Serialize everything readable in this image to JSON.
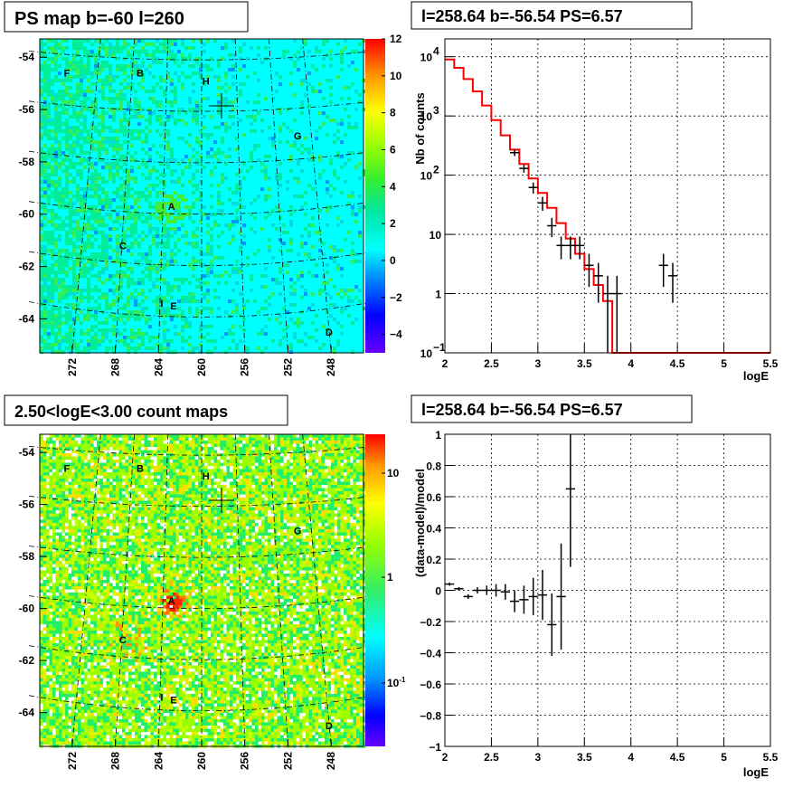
{
  "panels": {
    "ps_map": {
      "title": "PS map b=-60 l=260",
      "y_ticks": [
        "-54",
        "-56",
        "-58",
        "-60",
        "-62",
        "-64"
      ],
      "x_ticks": [
        "272",
        "268",
        "264",
        "260",
        "256",
        "252",
        "248"
      ],
      "colorbar_ticks": [
        "12",
        "10",
        "8",
        "6",
        "4",
        "2",
        "0",
        "−2",
        "−4"
      ],
      "sources": [
        "F",
        "B",
        "H",
        "G",
        "A",
        "C",
        "I",
        "E",
        "D"
      ]
    },
    "count_map": {
      "title": "2.50<logE<3.00 count maps",
      "y_ticks": [
        "-54",
        "-56",
        "-58",
        "-60",
        "-62",
        "-64"
      ],
      "x_ticks": [
        "272",
        "268",
        "264",
        "260",
        "256",
        "252",
        "248"
      ],
      "colorbar_ticks": [
        "10",
        "1",
        "10"
      ],
      "colorbar_exponent": "-1",
      "sources": [
        "F",
        "B",
        "H",
        "G",
        "A",
        "C",
        "I",
        "E",
        "D"
      ]
    },
    "spectrum": {
      "title": "l=258.64 b=-56.54 PS=6.57",
      "ylabel": "Nb of counts",
      "xlabel": "logE",
      "x_ticks": [
        "2",
        "2.5",
        "3",
        "3.5",
        "4",
        "4.5",
        "5",
        "5.5"
      ],
      "y_ticks": [
        {
          "base": "10",
          "exp": "4"
        },
        {
          "base": "10",
          "exp": "3"
        },
        {
          "base": "10",
          "exp": "2"
        },
        {
          "base": "10",
          "exp": ""
        },
        {
          "base": "1",
          "exp": ""
        },
        {
          "base": "10",
          "exp": "−1"
        }
      ]
    },
    "residual": {
      "title": "l=258.64 b=-56.54 PS=6.57",
      "ylabel": "(data-model)/model",
      "xlabel": "logE",
      "x_ticks": [
        "2",
        "2.5",
        "3",
        "3.5",
        "4",
        "4.5",
        "5",
        "5.5"
      ],
      "y_ticks": [
        "1",
        "0.8",
        "0.6",
        "0.4",
        "0.2",
        "0",
        "−0.2",
        "−0.4",
        "−0.6",
        "−0.8",
        "−1"
      ]
    }
  },
  "colors": {
    "model_line": "#ff0000",
    "data_points": "#000000",
    "map_background": "#00ffff"
  },
  "chart_data": [
    {
      "type": "heatmap",
      "title": "PS map b=-60 l=260",
      "xlabel": "",
      "ylabel": "",
      "xlim": [
        275,
        245
      ],
      "ylim": [
        -65.3,
        -53.3
      ],
      "zlim": [
        -5,
        12
      ],
      "marker": {
        "l": 258.64,
        "b": -56.1
      },
      "sources": [
        {
          "name": "F",
          "l": 272.5,
          "b": -54.6
        },
        {
          "name": "B",
          "l": 265.7,
          "b": -54.6
        },
        {
          "name": "H",
          "l": 259.6,
          "b": -54.9
        },
        {
          "name": "G",
          "l": 251.1,
          "b": -57.0
        },
        {
          "name": "A",
          "l": 262.8,
          "b": -59.7
        },
        {
          "name": "C",
          "l": 267.3,
          "b": -61.2
        },
        {
          "name": "I",
          "l": 263.7,
          "b": -63.4
        },
        {
          "name": "E",
          "l": 262.6,
          "b": -63.5
        },
        {
          "name": "D",
          "l": 248.2,
          "b": -64.5
        }
      ]
    },
    {
      "type": "heatmap",
      "title": "2.50<logE<3.00 count maps",
      "xlabel": "",
      "ylabel": "",
      "xlim": [
        275,
        245
      ],
      "ylim": [
        -65.3,
        -53.3
      ],
      "zscale": "log",
      "hotspot": {
        "name": "A",
        "l": 262.8,
        "b": -59.7
      }
    },
    {
      "type": "line",
      "title": "l=258.64 b=-56.54 PS=6.57",
      "xlabel": "logE",
      "ylabel": "Nb of counts",
      "xlim": [
        2,
        5.5
      ],
      "ylim": [
        0.1,
        20000
      ],
      "yscale": "log",
      "series": [
        {
          "name": "",
          "kind": "histogram",
          "edges": [
            2.0,
            2.1,
            2.2,
            2.3,
            2.4,
            2.5,
            2.6,
            2.7,
            2.8,
            2.9,
            3.0,
            3.1,
            3.2,
            3.3,
            3.4,
            3.5,
            3.6,
            3.7,
            3.8,
            3.9,
            4.0,
            4.1,
            4.2,
            4.3,
            4.4,
            4.5,
            4.6,
            4.7,
            4.8,
            4.9,
            5.0,
            5.1,
            5.2,
            5.3,
            5.4,
            5.5
          ],
          "values": [
            9000,
            6500,
            4200,
            2600,
            1500,
            850,
            470,
            270,
            155,
            88,
            50,
            28,
            15.5,
            8.5,
            4.7,
            2.6,
            1.4,
            0.75,
            0.1,
            0.1,
            0.1,
            0.1,
            0.1,
            0.1,
            0.1,
            0.1,
            0.1,
            0.1,
            0.1,
            0.1,
            0.1,
            0.1,
            0.1,
            0.1,
            0.1
          ]
        },
        {
          "name": "",
          "kind": "errorbars",
          "x": [
            2.75,
            2.85,
            2.95,
            3.05,
            3.15,
            3.25,
            3.35,
            3.45,
            3.55,
            3.65,
            3.75,
            3.85,
            4.35,
            4.45
          ],
          "y": [
            240,
            130,
            62,
            34,
            14,
            6.5,
            6.5,
            6.5,
            3,
            2,
            1,
            1,
            3,
            2
          ],
          "ylow": [
            210,
            110,
            49,
            25,
            9,
            3.8,
            3.8,
            3.8,
            1.3,
            0.7,
            0.1,
            0.1,
            1.3,
            0.7
          ],
          "yhigh": [
            270,
            150,
            75,
            43,
            19,
            9.2,
            9.2,
            9.2,
            4.7,
            3.3,
            2,
            2,
            4.7,
            3.3
          ]
        }
      ]
    },
    {
      "type": "scatter",
      "title": "l=258.64 b=-56.54 PS=6.57",
      "xlabel": "logE",
      "ylabel": "(data-model)/model",
      "xlim": [
        2,
        5.5
      ],
      "ylim": [
        -1,
        1
      ],
      "series": [
        {
          "name": "",
          "x": [
            2.05,
            2.15,
            2.25,
            2.35,
            2.45,
            2.55,
            2.65,
            2.75,
            2.85,
            2.95,
            3.05,
            3.15,
            3.25,
            3.35
          ],
          "y": [
            0.04,
            0.01,
            -0.04,
            0.0,
            0.0,
            0.0,
            -0.01,
            -0.07,
            -0.06,
            -0.04,
            -0.03,
            -0.22,
            -0.04,
            0.65
          ],
          "yerr": [
            0.01,
            0.01,
            0.015,
            0.02,
            0.03,
            0.04,
            0.05,
            0.07,
            0.09,
            0.12,
            0.16,
            0.2,
            0.34,
            0.5
          ]
        }
      ]
    }
  ]
}
